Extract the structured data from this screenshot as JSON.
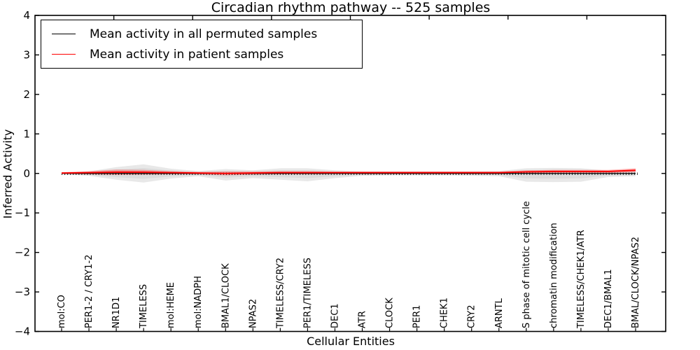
{
  "title": "Circadian rhythm pathway -- 525 samples",
  "legend": {
    "items": [
      {
        "label": "Mean activity in all permuted samples",
        "color": "#000000"
      },
      {
        "label": "Mean activity in patient samples",
        "color": "#ff0000"
      }
    ]
  },
  "chart_data": {
    "type": "line",
    "title": "Circadian rhythm pathway -- 525 samples",
    "xlabel": "Cellular Entities",
    "ylabel": "Inferred Activity",
    "ylim": [
      -4,
      4
    ],
    "ytick_labels": [
      "4",
      "3",
      "2",
      "1",
      "0",
      "−1",
      "−2",
      "−3",
      "−4"
    ],
    "grid": false,
    "legend_position": "upper left",
    "categories": [
      "mol:CO",
      "PER1-2 / CRY1-2",
      "NR1D1",
      "TIMELESS",
      "mol:HEME",
      "mol:NADPH",
      "BMAL1/CLOCK",
      "NPAS2",
      "TIMELESS/CRY2",
      "PER1/TIMELESS",
      "DEC1",
      "ATR",
      "CLOCK",
      "PER1",
      "CHEK1",
      "CRY2",
      "ARNTL",
      "S phase of mitotic cell cycle",
      "chromatin modification",
      "TIMELESS/CHEK1/ATR",
      "DEC1/BMAL1",
      "BMAL/CLOCK/NPAS2"
    ],
    "series": [
      {
        "name": "Mean activity in all permuted samples",
        "color": "#000000",
        "marker": "error-bar-ticks",
        "values": [
          0,
          0,
          0,
          0,
          0,
          0,
          0,
          0,
          0,
          0,
          0,
          0,
          0,
          0,
          0,
          0,
          0,
          0,
          0,
          0,
          0,
          0
        ]
      },
      {
        "name": "Mean activity in patient samples",
        "color": "#ff0000",
        "values": [
          0.01,
          0.02,
          0.03,
          0.03,
          0.02,
          0.01,
          0.0,
          0.01,
          0.02,
          0.02,
          0.02,
          0.02,
          0.02,
          0.02,
          0.02,
          0.02,
          0.02,
          0.04,
          0.05,
          0.05,
          0.05,
          0.08
        ]
      }
    ],
    "permuted_band": {
      "color": "#e8e8e8",
      "upper": [
        0.02,
        0.05,
        0.16,
        0.23,
        0.12,
        0.06,
        0.11,
        0.08,
        0.13,
        0.13,
        0.08,
        0.05,
        0.05,
        0.05,
        0.05,
        0.05,
        0.06,
        0.13,
        0.14,
        0.13,
        0.07,
        0.07
      ],
      "lower": [
        0.02,
        0.06,
        0.16,
        0.23,
        0.13,
        0.07,
        0.18,
        0.12,
        0.16,
        0.2,
        0.12,
        0.06,
        0.05,
        0.05,
        0.05,
        0.06,
        0.07,
        0.21,
        0.22,
        0.21,
        0.09,
        0.07
      ]
    },
    "patient_band": {
      "color": "rgba(255,0,0,0.25)",
      "half_width": [
        0.02,
        0.04,
        0.07,
        0.06,
        0.04,
        0.03,
        0.05,
        0.04,
        0.04,
        0.04,
        0.03,
        0.03,
        0.03,
        0.03,
        0.03,
        0.03,
        0.03,
        0.04,
        0.04,
        0.04,
        0.04,
        0.05
      ]
    }
  }
}
